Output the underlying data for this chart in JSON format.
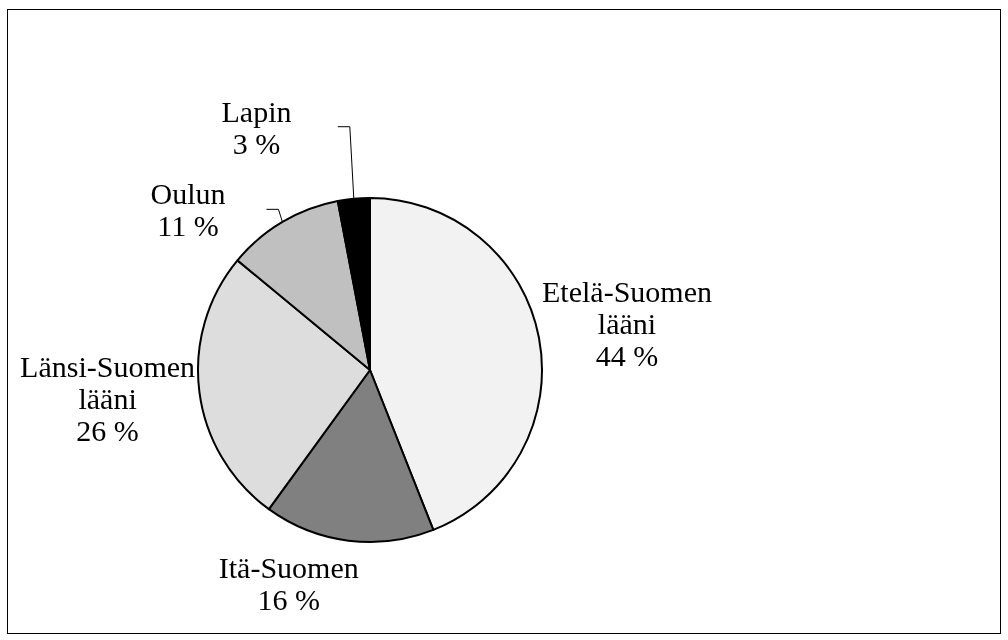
{
  "chart_data": {
    "type": "pie",
    "categories": [
      "Etelä-Suomen lääni",
      "Itä-Suomen",
      "Länsi-Suomen lääni",
      "Oulun",
      "Lapin"
    ],
    "values": [
      44,
      16,
      26,
      11,
      3
    ],
    "colors": [
      "#f2f2f2",
      "#808080",
      "#dddddd",
      "#c0c0c0",
      "#000000"
    ],
    "value_labels": [
      "44 %",
      "16 %",
      "26 %",
      "11 %",
      "3 %"
    ]
  }
}
